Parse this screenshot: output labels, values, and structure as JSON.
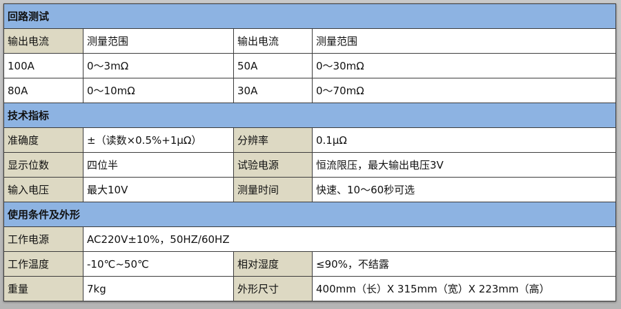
{
  "colors": {
    "section_header": "#8db3e2",
    "label_cell": "#ddd9c3"
  },
  "sections": [
    {
      "title": "回路测试",
      "rows": [
        [
          "输出电流",
          "测量范围",
          "输出电流",
          "测量范围"
        ],
        [
          "100A",
          "0～3mΩ",
          "50A",
          "0～30mΩ"
        ],
        [
          "80A",
          "0～10mΩ",
          "30A",
          "0～70mΩ"
        ]
      ]
    },
    {
      "title": "技术指标",
      "rows": [
        [
          "准确度",
          "±（读数×0.5%+1μΩ）",
          "分辨率",
          "0.1μΩ"
        ],
        [
          "显示位数",
          "四位半",
          "试验电源",
          "恒流限压，最大输出电压3V"
        ],
        [
          "输入电压",
          "最大10V",
          "测量时间",
          "快速、10～60秒可选"
        ]
      ]
    },
    {
      "title": "使用条件及外形",
      "rows": [
        [
          "工作电源",
          "AC220V±10%，50HZ/60HZ"
        ],
        [
          "工作温度",
          "-10℃~50℃",
          "相对湿度",
          "≤90%，不结露"
        ],
        [
          "重量",
          "7kg",
          "外形尺寸",
          "400mm（长）X 315mm（宽）X 223mm（高）"
        ]
      ]
    }
  ]
}
